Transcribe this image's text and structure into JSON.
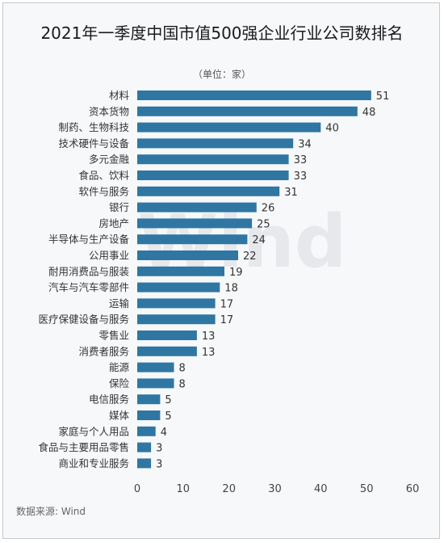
{
  "chart_data": {
    "type": "bar",
    "orientation": "horizontal",
    "title": "2021年一季度中国市值500强企业行业公司数排名",
    "subtitle": "（单位：家）",
    "categories": [
      "材料",
      "资本货物",
      "制药、生物科技",
      "技术硬件与设备",
      "多元金融",
      "食品、饮料",
      "软件与服务",
      "银行",
      "房地产",
      "半导体与生产设备",
      "公用事业",
      "耐用消费品与服装",
      "汽车与汽车零部件",
      "运输",
      "医疗保健设备与服务",
      "零售业",
      "消费者服务",
      "能源",
      "保险",
      "电信服务",
      "媒体",
      "家庭与个人用品",
      "食品与主要用品零售",
      "商业和专业服务"
    ],
    "values": [
      51,
      48,
      40,
      34,
      33,
      33,
      31,
      26,
      25,
      24,
      22,
      19,
      18,
      17,
      17,
      13,
      13,
      8,
      8,
      5,
      5,
      4,
      3,
      3
    ],
    "xlim": [
      0,
      60
    ],
    "xticks": [
      0,
      10,
      20,
      30,
      40,
      50,
      60
    ],
    "grid": false,
    "legend": "none",
    "bar_color": "#2f76a3",
    "source": "数据来源: Wind",
    "watermark": "Wind"
  }
}
